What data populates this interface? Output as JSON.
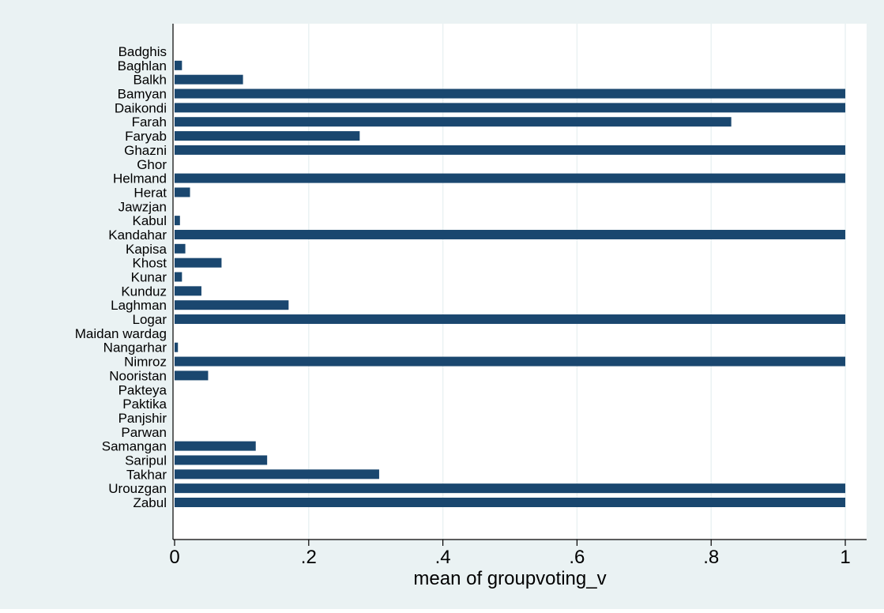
{
  "colors": {
    "outer_background": "#eaf2f3",
    "plot_background": "#ffffff",
    "bar": "#1a476f",
    "grid": "#eaf2f3",
    "axis": "#000000",
    "text": "#000000"
  },
  "chart_data": {
    "type": "bar",
    "orientation": "horizontal",
    "title": "",
    "xlabel": "mean of groupvoting_v",
    "ylabel": "",
    "xlim": [
      0,
      1
    ],
    "x_ticks": [
      0,
      0.2,
      0.4,
      0.6,
      0.8,
      1
    ],
    "x_tick_labels": [
      "0",
      ".2",
      ".4",
      ".6",
      ".8",
      "1"
    ],
    "grid": true,
    "categories": [
      "Badghis",
      "Baghlan",
      "Balkh",
      "Bamyan",
      "Daikondi",
      "Farah",
      "Faryab",
      "Ghazni",
      "Ghor",
      "Helmand",
      "Herat",
      "Jawzjan",
      "Kabul",
      "Kandahar",
      "Kapisa",
      "Khost",
      "Kunar",
      "Kunduz",
      "Laghman",
      "Logar",
      "Maidan wardag",
      "Nangarhar",
      "Nimroz",
      "Nooristan",
      "Pakteya",
      "Paktika",
      "Panjshir",
      "Parwan",
      "Samangan",
      "Saripul",
      "Takhar",
      "Urouzgan",
      "Zabul"
    ],
    "values": [
      0,
      0.011,
      0.102,
      1,
      1,
      0.83,
      0.276,
      1,
      0,
      1,
      0.023,
      0,
      0.008,
      1,
      0.016,
      0.07,
      0.011,
      0.04,
      0.17,
      1,
      0,
      0.005,
      1,
      0.05,
      0,
      0,
      0,
      0,
      0.121,
      0.138,
      0.305,
      1,
      1
    ]
  }
}
